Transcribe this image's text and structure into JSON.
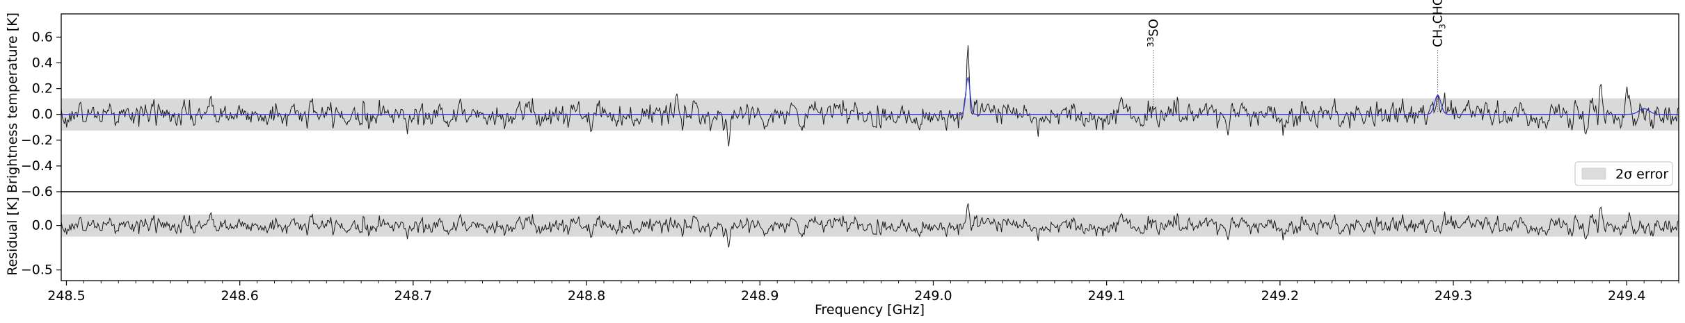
{
  "chart_data": [
    {
      "type": "line",
      "panel": "top",
      "ylabel": "Brightness temperature [K]",
      "ylim": [
        -0.6,
        0.78
      ],
      "xlim": [
        248.497,
        249.43
      ],
      "grid": false,
      "yticks": [
        {
          "value": 0.6,
          "label": "0.6"
        },
        {
          "value": 0.4,
          "label": "0.4"
        },
        {
          "value": 0.2,
          "label": "0.2"
        },
        {
          "value": 0.0,
          "label": "0.0"
        },
        {
          "value": -0.2,
          "label": "−0.2"
        },
        {
          "value": -0.4,
          "label": "−0.4"
        },
        {
          "value": -0.6,
          "label": "−0.6"
        }
      ],
      "error_band": {
        "low": -0.125,
        "high": 0.125,
        "color": "#d9d9d9"
      },
      "legend": {
        "position": "lower-right",
        "entries": [
          {
            "label": "2σ error",
            "color": "#dcdcdc"
          }
        ]
      },
      "series": [
        {
          "kind": "observed",
          "color": "#1a1a1a",
          "noise_sigma": 0.062,
          "x": [
            248.5,
            248.55,
            248.6,
            248.65,
            248.7,
            248.75,
            248.8,
            248.85,
            248.88,
            248.9,
            248.95,
            249.0,
            249.02,
            249.05,
            249.1,
            249.15,
            249.17,
            249.2,
            249.25,
            249.29,
            249.3,
            249.35,
            249.385,
            249.43
          ],
          "y": [
            0.0,
            0.0,
            0.0,
            0.0,
            0.0,
            0.0,
            0.0,
            0.02,
            -0.04,
            0.0,
            0.0,
            0.0,
            0.52,
            0.0,
            0.0,
            0.0,
            -0.03,
            0.0,
            0.0,
            0.14,
            0.0,
            0.0,
            0.12,
            0.0
          ],
          "features": [
            {
              "x": 249.02,
              "y": 0.55
            },
            {
              "x": 248.882,
              "y": -0.25
            },
            {
              "x": 248.852,
              "y": 0.17
            },
            {
              "x": 249.291,
              "y": 0.16
            },
            {
              "x": 249.385,
              "y": 0.26
            },
            {
              "x": 249.4,
              "y": 0.21
            },
            {
              "x": 249.17,
              "y": -0.16
            }
          ]
        },
        {
          "kind": "model",
          "color": "#3a3ad6",
          "lines": [
            {
              "center": 249.02,
              "amplitude": 0.29,
              "width": 0.0012
            },
            {
              "center": 249.291,
              "amplitude": 0.15,
              "width": 0.0018
            },
            {
              "center": 249.41,
              "amplitude": 0.045,
              "width": 0.003
            }
          ]
        }
      ],
      "annotations": [
        {
          "x": 249.127,
          "isotope": "33",
          "text": "SO"
        },
        {
          "x": 249.291,
          "text": "CH",
          "subscript": "3",
          "suffix": "CHO"
        }
      ]
    },
    {
      "type": "line",
      "panel": "bottom",
      "ylabel": "Residual [K]",
      "xlabel": "Frequency [GHz]",
      "ylim": [
        -0.62,
        0.38
      ],
      "xlim": [
        248.497,
        249.43
      ],
      "grid": false,
      "yticks": [
        {
          "value": 0.0,
          "label": "0.0"
        },
        {
          "value": -0.5,
          "label": "−0.5"
        }
      ],
      "xticks": [
        {
          "value": 248.5,
          "label": "248.5"
        },
        {
          "value": 248.6,
          "label": "248.6"
        },
        {
          "value": 248.7,
          "label": "248.7"
        },
        {
          "value": 248.8,
          "label": "248.8"
        },
        {
          "value": 248.9,
          "label": "248.9"
        },
        {
          "value": 249.0,
          "label": "249.0"
        },
        {
          "value": 249.1,
          "label": "249.1"
        },
        {
          "value": 249.2,
          "label": "249.2"
        },
        {
          "value": 249.3,
          "label": "249.3"
        },
        {
          "value": 249.4,
          "label": "249.4"
        }
      ],
      "error_band": {
        "low": -0.125,
        "high": 0.125,
        "color": "#d9d9d9"
      },
      "series": [
        {
          "kind": "residual",
          "color": "#1a1a1a",
          "noise_sigma": 0.062,
          "features": [
            {
              "x": 249.02,
              "y": 0.26
            },
            {
              "x": 248.882,
              "y": -0.25
            },
            {
              "x": 249.385,
              "y": 0.23
            },
            {
              "x": 249.17,
              "y": -0.16
            }
          ]
        }
      ]
    }
  ]
}
